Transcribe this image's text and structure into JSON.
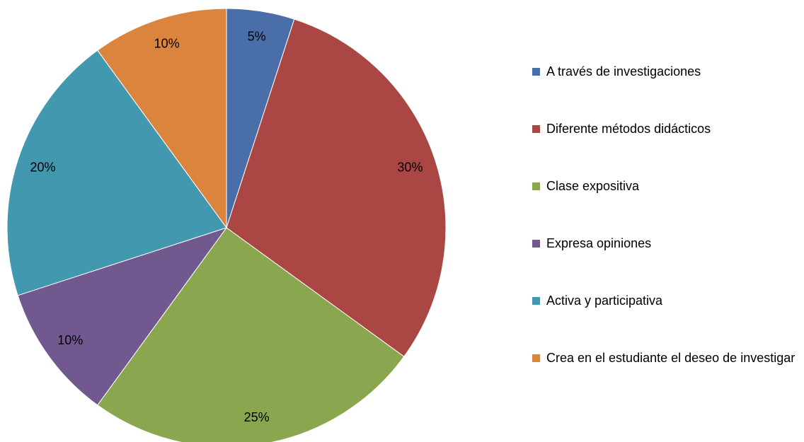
{
  "chart_data": {
    "type": "pie",
    "categories": [
      "A través de investigaciones",
      "Diferente métodos didácticos",
      "Clase expositiva",
      "Expresa opiniones",
      "Activa y participativa",
      "Crea en el estudiante el deseo de investigar"
    ],
    "values": [
      5,
      30,
      25,
      10,
      20,
      10
    ],
    "value_labels": [
      "5%",
      "30%",
      "25%",
      "10%",
      "20%",
      "10%"
    ],
    "colors": [
      "#4a6fa8",
      "#aa4644",
      "#8aa64e",
      "#71588f",
      "#4198af",
      "#db843d"
    ],
    "legend": "right"
  }
}
